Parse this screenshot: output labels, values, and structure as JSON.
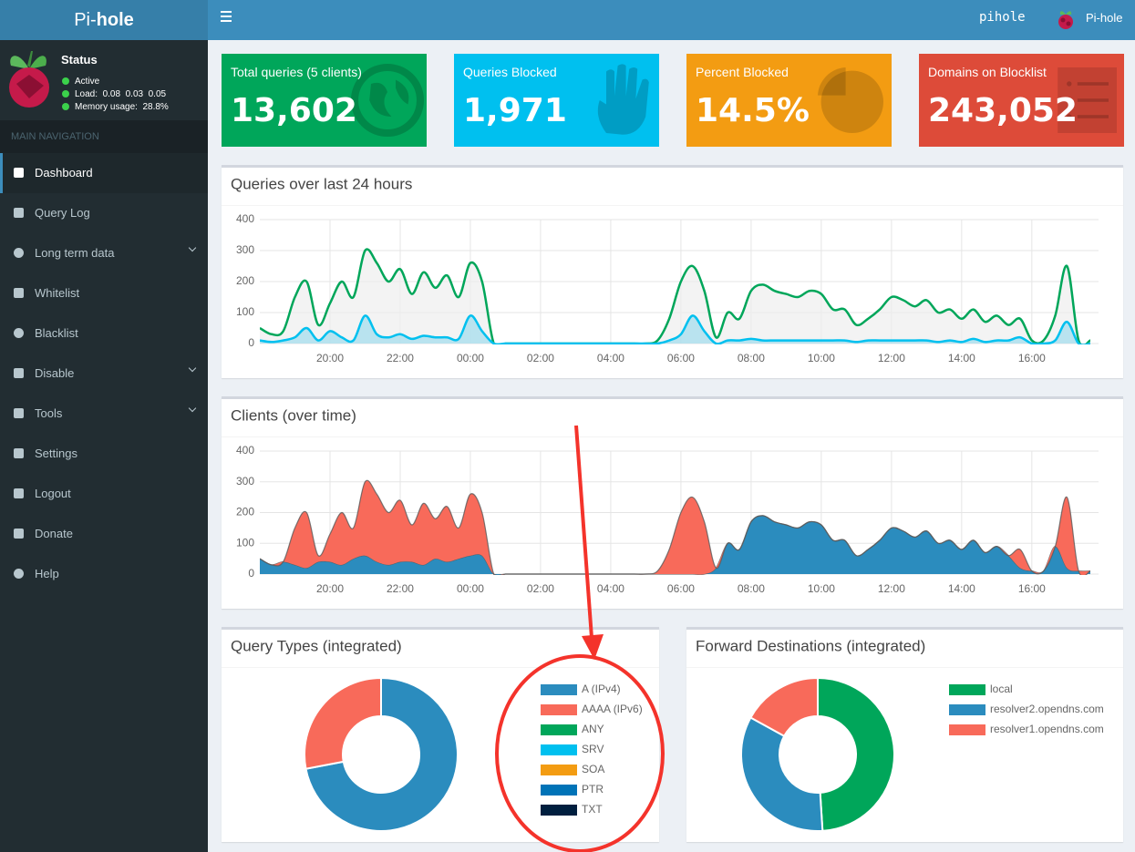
{
  "header": {
    "logo": [
      "Pi-",
      "hole"
    ],
    "hostname": "pihole",
    "user": "Pi-hole"
  },
  "sidebar": {
    "status_title": "Status",
    "status": [
      "Active",
      "Load:  0.08  0.03  0.05",
      "Memory usage:  28.8%"
    ],
    "nav_header": "MAIN NAVIGATION",
    "items": [
      "Dashboard",
      "Query Log",
      "Long term data",
      "Whitelist",
      "Blacklist",
      "Disable",
      "Tools",
      "Settings",
      "Logout",
      "Donate",
      "Help"
    ]
  },
  "stats": [
    {
      "label": "Total queries (5 clients)",
      "value": "13,602"
    },
    {
      "label": "Queries Blocked",
      "value": "1,971"
    },
    {
      "label": "Percent Blocked",
      "value": "14.5%"
    },
    {
      "label": "Domains on Blocklist",
      "value": "243,052"
    }
  ],
  "chart_data": [
    {
      "type": "line",
      "title": "Queries over last 24 hours",
      "categories": [
        null,
        null,
        null,
        null,
        null,
        null,
        "20:00",
        null,
        null,
        null,
        null,
        null,
        "22:00",
        null,
        null,
        null,
        null,
        null,
        "00:00",
        null,
        null,
        null,
        null,
        null,
        "02:00",
        null,
        null,
        null,
        null,
        null,
        "04:00",
        null,
        null,
        null,
        null,
        null,
        "06:00",
        null,
        null,
        null,
        null,
        null,
        "08:00",
        null,
        null,
        null,
        null,
        null,
        "10:00",
        null,
        null,
        null,
        null,
        null,
        "12:00",
        null,
        null,
        null,
        null,
        null,
        "14:00",
        null,
        null,
        null,
        null,
        null,
        "16:00",
        null,
        null,
        null,
        null,
        null
      ],
      "ylim": [
        0,
        400
      ],
      "yticks": [
        0,
        100,
        200,
        300,
        400
      ],
      "grid": true,
      "series": [
        {
          "color": "#00a65a",
          "fill": "#eeeeee",
          "values": [
            50,
            30,
            40,
            150,
            200,
            60,
            130,
            200,
            150,
            300,
            260,
            200,
            240,
            160,
            230,
            180,
            220,
            150,
            260,
            200,
            0,
            0,
            0,
            0,
            0,
            0,
            0,
            0,
            0,
            0,
            0,
            0,
            0,
            0,
            10,
            80,
            200,
            250,
            170,
            20,
            100,
            80,
            170,
            190,
            170,
            160,
            150,
            170,
            160,
            110,
            110,
            60,
            80,
            110,
            150,
            140,
            120,
            140,
            100,
            110,
            80,
            110,
            70,
            90,
            60,
            80,
            10,
            10,
            90,
            250,
            10,
            10
          ]
        },
        {
          "color": "#00c0ef",
          "fill": "#9fdcec",
          "values": [
            10,
            5,
            10,
            20,
            50,
            10,
            40,
            20,
            10,
            90,
            30,
            20,
            30,
            15,
            25,
            20,
            20,
            15,
            90,
            40,
            0,
            0,
            0,
            0,
            0,
            0,
            0,
            0,
            0,
            0,
            0,
            0,
            0,
            0,
            0,
            10,
            30,
            90,
            40,
            0,
            10,
            10,
            15,
            10,
            10,
            10,
            10,
            10,
            10,
            10,
            10,
            5,
            10,
            10,
            10,
            10,
            10,
            10,
            5,
            10,
            5,
            15,
            5,
            10,
            10,
            20,
            0,
            0,
            10,
            70,
            0,
            0
          ]
        }
      ]
    },
    {
      "type": "stacked_area",
      "title": "Clients (over time)",
      "categories": [
        null,
        null,
        null,
        null,
        null,
        null,
        "20:00",
        null,
        null,
        null,
        null,
        null,
        "22:00",
        null,
        null,
        null,
        null,
        null,
        "00:00",
        null,
        null,
        null,
        null,
        null,
        "02:00",
        null,
        null,
        null,
        null,
        null,
        "04:00",
        null,
        null,
        null,
        null,
        null,
        "06:00",
        null,
        null,
        null,
        null,
        null,
        "08:00",
        null,
        null,
        null,
        null,
        null,
        "10:00",
        null,
        null,
        null,
        null,
        null,
        "12:00",
        null,
        null,
        null,
        null,
        null,
        "14:00",
        null,
        null,
        null,
        null,
        null,
        "16:00",
        null,
        null,
        null,
        null,
        null
      ],
      "ylim": [
        0,
        400
      ],
      "yticks": [
        0,
        100,
        200,
        300,
        400
      ],
      "grid": true,
      "series": [
        {
          "color": "#2b8cbe",
          "values": [
            50,
            30,
            40,
            30,
            20,
            40,
            40,
            30,
            50,
            60,
            40,
            30,
            40,
            40,
            30,
            50,
            40,
            50,
            60,
            60,
            0,
            0,
            0,
            0,
            0,
            0,
            0,
            0,
            0,
            0,
            0,
            0,
            0,
            0,
            0,
            0,
            0,
            0,
            0,
            20,
            100,
            80,
            170,
            190,
            170,
            160,
            150,
            170,
            160,
            110,
            110,
            60,
            80,
            110,
            150,
            140,
            120,
            140,
            100,
            110,
            80,
            110,
            70,
            90,
            60,
            20,
            10,
            10,
            90,
            20,
            10,
            10
          ]
        },
        {
          "color": "#f86a5a",
          "values": [
            0,
            0,
            0,
            120,
            180,
            20,
            90,
            170,
            100,
            240,
            220,
            170,
            200,
            120,
            200,
            130,
            180,
            100,
            200,
            140,
            0,
            0,
            0,
            0,
            0,
            0,
            0,
            0,
            0,
            0,
            0,
            0,
            0,
            0,
            10,
            80,
            200,
            250,
            170,
            0,
            0,
            0,
            0,
            0,
            0,
            0,
            0,
            0,
            0,
            0,
            0,
            0,
            0,
            0,
            0,
            0,
            0,
            0,
            0,
            0,
            0,
            0,
            0,
            0,
            0,
            60,
            0,
            0,
            0,
            230,
            0,
            0
          ]
        }
      ]
    },
    {
      "type": "pie",
      "donut": true,
      "title": "Query Types (integrated)",
      "categories": [
        "A (IPv4)",
        "AAAA (IPv6)",
        "ANY",
        "SRV",
        "SOA",
        "PTR",
        "TXT"
      ],
      "values": [
        72,
        28,
        0,
        0,
        0,
        0,
        0
      ],
      "colors": [
        "#2b8cbe",
        "#f86a5a",
        "#00a65a",
        "#00c0ef",
        "#f39c12",
        "#0073b7",
        "#001f3f"
      ]
    },
    {
      "type": "pie",
      "donut": true,
      "title": "Forward Destinations (integrated)",
      "categories": [
        "local",
        "resolver2.opendns.com",
        "resolver1.opendns.com"
      ],
      "values": [
        49,
        34,
        17
      ],
      "colors": [
        "#00a65a",
        "#2b8cbe",
        "#f86a5a"
      ]
    }
  ]
}
